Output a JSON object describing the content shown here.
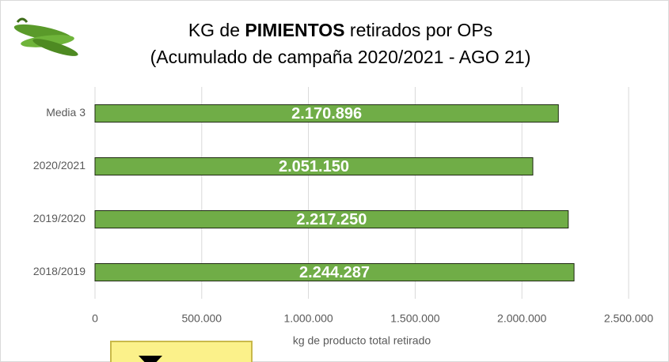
{
  "chart_data": {
    "type": "bar",
    "orientation": "horizontal",
    "title": [
      "KG de ",
      "PIMIENTOS",
      " retirados por OPs"
    ],
    "subtitle": "(Acumulado de campaña 2020/2021 - AGO 21)",
    "categories": [
      "Media 3",
      "2020/2021",
      "2019/2020",
      "2018/2019"
    ],
    "values": [
      2170896,
      2051150,
      2217250,
      2244287
    ],
    "value_labels": [
      "2.170.896",
      "2.051.150",
      "2.217.250",
      "2.244.287"
    ],
    "color": "#70ad47",
    "xlim": [
      0,
      2500000
    ],
    "xticks": [
      0,
      {
        "value": 500000,
        "label": "500.000"
      },
      {
        "value": 1000000,
        "label": "1.000.000"
      },
      {
        "value": 1500000,
        "label": "1.500.000"
      },
      {
        "value": 2000000,
        "label": "2.000.000"
      },
      {
        "value": 2500000,
        "label": "2.500.000"
      }
    ],
    "xlabel": "kg de producto total retirado",
    "grid": true
  }
}
